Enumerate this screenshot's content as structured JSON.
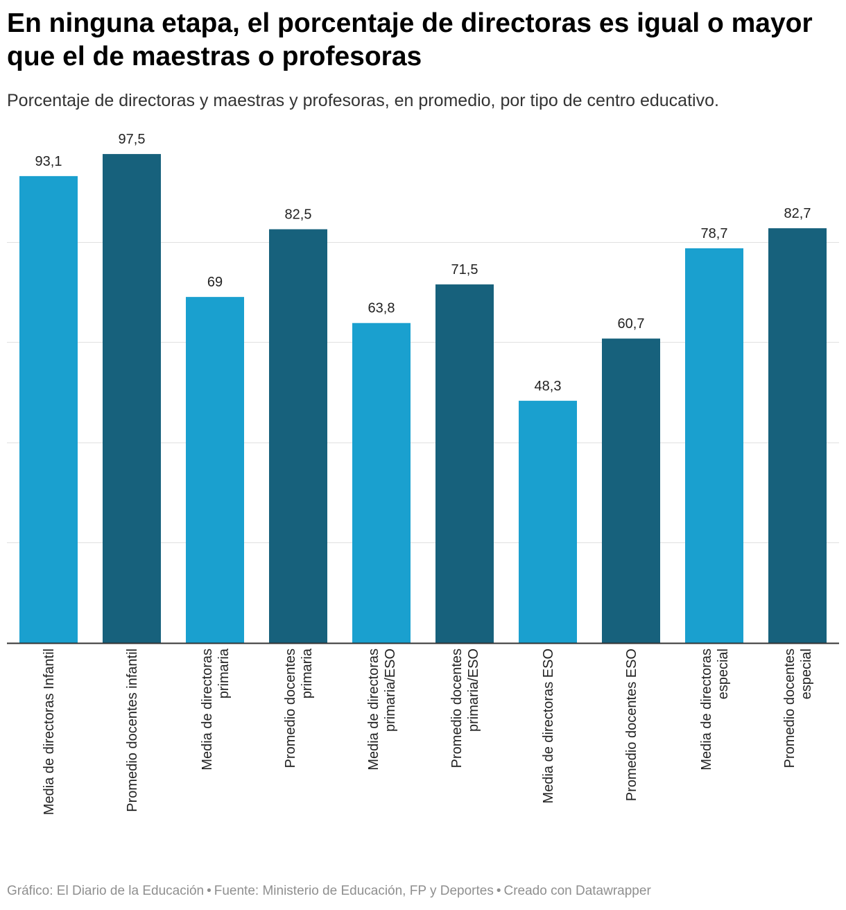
{
  "header": {
    "title": "En ninguna etapa, el porcentaje de directoras es igual o mayor que el de maestras o profesoras",
    "subtitle": "Porcentaje de directoras y maestras y profesoras, en promedio, por tipo de centro educativo."
  },
  "footer": {
    "credit": "Gráfico: El Diario de la Educación",
    "source": "Fuente: Ministerio de Educación, FP y Deportes",
    "tool": "Creado con Datawrapper",
    "separator": "•"
  },
  "colors": {
    "directoras": "#1aa0cf",
    "docentes": "#17617c",
    "grid": "#e0e0e0",
    "axis": "#333333",
    "label": "#222222"
  },
  "chart_data": {
    "type": "bar",
    "title": "En ninguna etapa, el porcentaje de directoras es igual o mayor que el de maestras o profesoras",
    "subtitle": "Porcentaje de directoras y maestras y profesoras, en promedio, por tipo de centro educativo.",
    "xlabel": "",
    "ylabel": "",
    "ylim": [
      0,
      100
    ],
    "gridlines": [
      20,
      40,
      60,
      80
    ],
    "grid": true,
    "legend": "none",
    "bars": [
      {
        "label": [
          "Media de directoras Infantil"
        ],
        "value": 93.1,
        "value_label": "93,1",
        "group": "directoras"
      },
      {
        "label": [
          "Promedio docentes infantil"
        ],
        "value": 97.5,
        "value_label": "97,5",
        "group": "docentes"
      },
      {
        "label": [
          "Media de directoras",
          "primaria"
        ],
        "value": 69,
        "value_label": "69",
        "group": "directoras"
      },
      {
        "label": [
          "Promedio docentes",
          "primaria"
        ],
        "value": 82.5,
        "value_label": "82,5",
        "group": "docentes"
      },
      {
        "label": [
          "Media de directoras",
          "primaria/ESO"
        ],
        "value": 63.8,
        "value_label": "63,8",
        "group": "directoras"
      },
      {
        "label": [
          "Promedio docentes",
          "primaria/ESO"
        ],
        "value": 71.5,
        "value_label": "71,5",
        "group": "docentes"
      },
      {
        "label": [
          "Media de directoras ESO"
        ],
        "value": 48.3,
        "value_label": "48,3",
        "group": "directoras"
      },
      {
        "label": [
          "Promedio docentes ESO"
        ],
        "value": 60.7,
        "value_label": "60,7",
        "group": "docentes"
      },
      {
        "label": [
          "Media de directoras",
          "especial"
        ],
        "value": 78.7,
        "value_label": "78,7",
        "group": "directoras"
      },
      {
        "label": [
          "Promedio docentes",
          "especial"
        ],
        "value": 82.7,
        "value_label": "82,7",
        "group": "docentes"
      }
    ]
  }
}
